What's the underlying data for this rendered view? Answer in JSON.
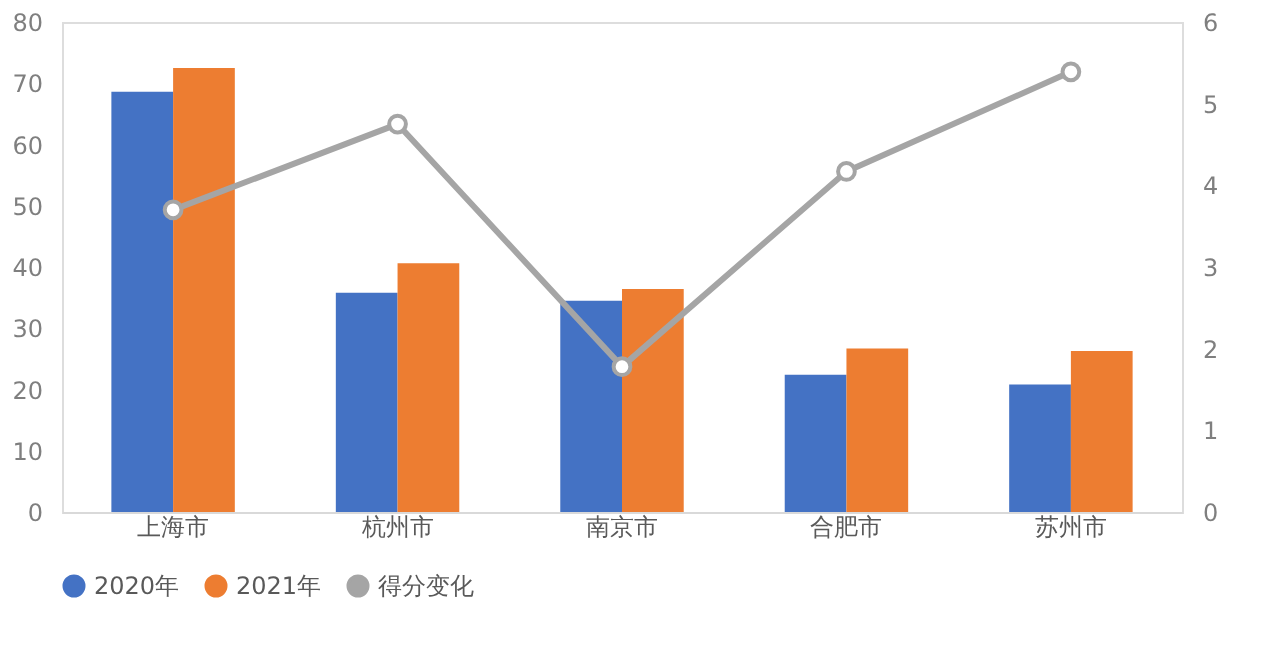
{
  "chart_data": {
    "type": "bar",
    "categories": [
      "上海市",
      "杭州市",
      "南京市",
      "合肥市",
      "苏州市"
    ],
    "series": [
      {
        "name": "2020年",
        "color": "#4472c4",
        "values": [
          68.6,
          35.8,
          34.5,
          22.4,
          20.8
        ]
      },
      {
        "name": "2021年",
        "color": "#ed7d31",
        "values": [
          72.5,
          40.6,
          36.4,
          26.7,
          26.3
        ]
      },
      {
        "name": "得分变化",
        "type": "line",
        "axis": "y2",
        "color": "#a5a5a5",
        "marker": "circle",
        "values": [
          3.7,
          4.75,
          1.78,
          4.17,
          5.39
        ]
      }
    ],
    "ylim": [
      0,
      80
    ],
    "yticks": [
      0,
      10,
      20,
      30,
      40,
      50,
      60,
      70,
      80
    ],
    "y2lim": [
      0,
      6
    ],
    "y2ticks": [
      0,
      1,
      2,
      3,
      4,
      5,
      6
    ],
    "grid": false,
    "legend": "bottom"
  }
}
